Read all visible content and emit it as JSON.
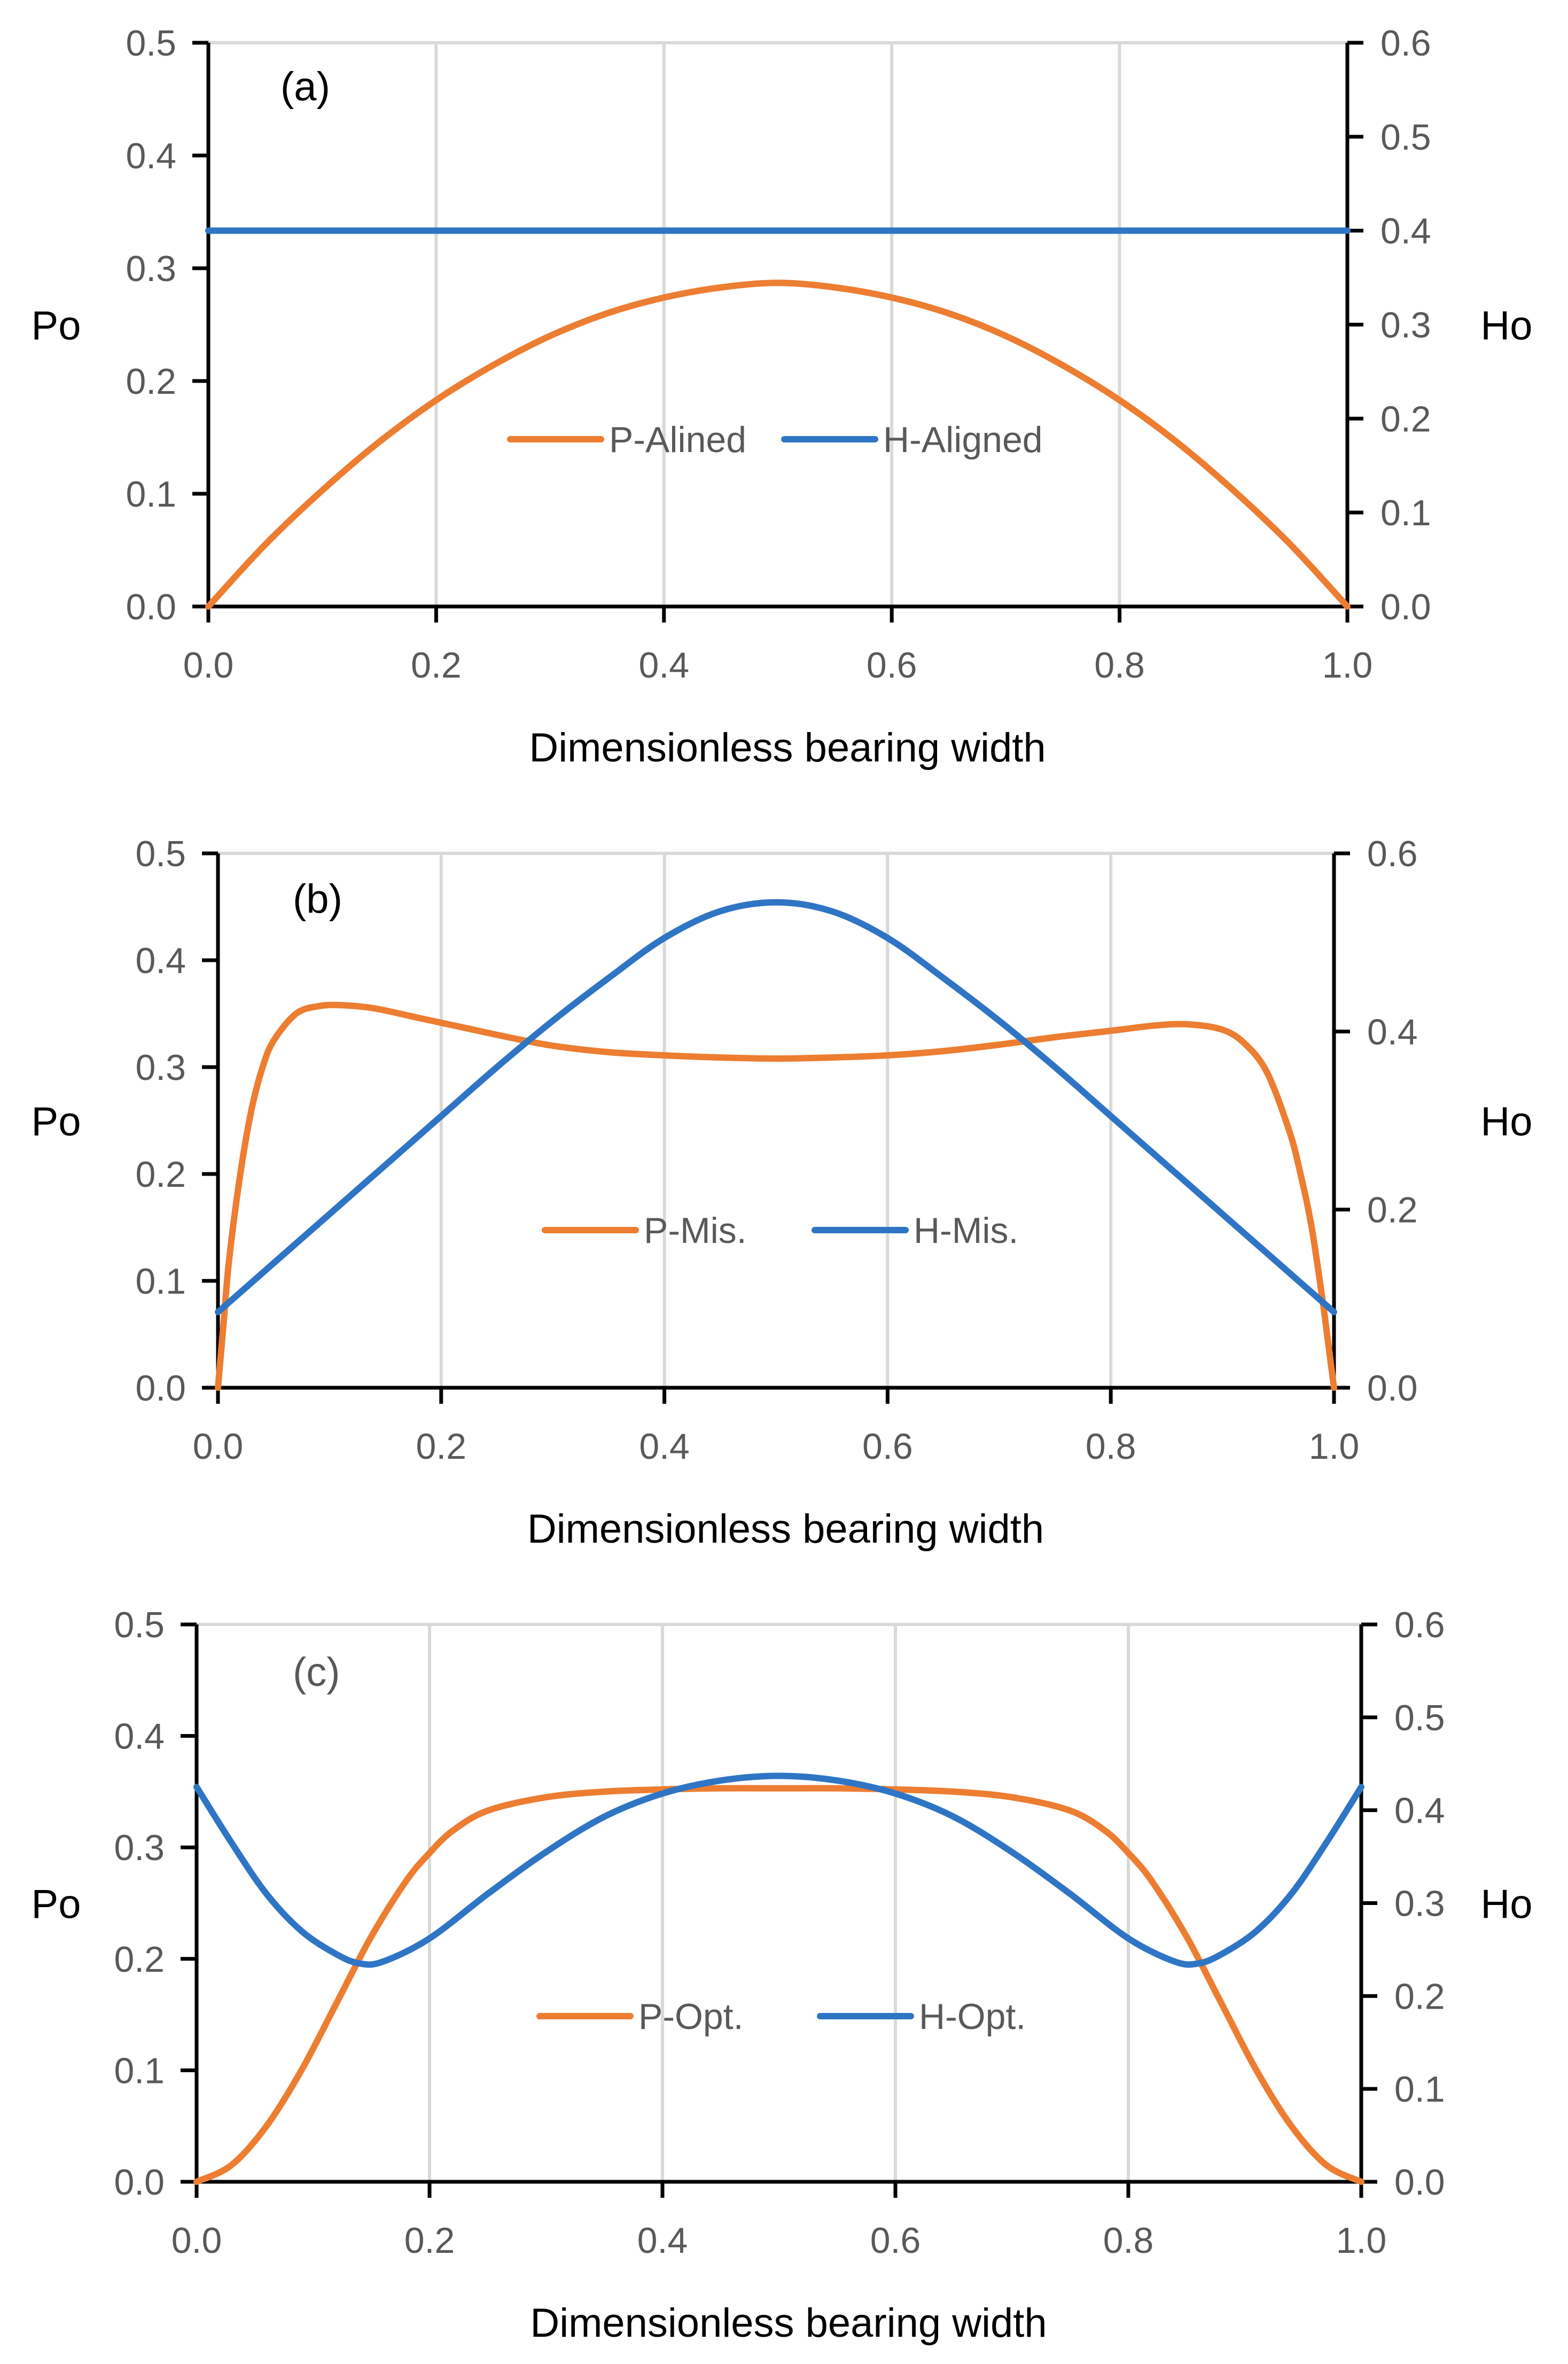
{
  "chart_data": [
    {
      "type": "line",
      "panel_label": "(a)",
      "xlabel": "Dimensionless bearing width",
      "ylabel_left": "Po",
      "ylabel_right": "Ho",
      "xlim": [
        0,
        1
      ],
      "ylim_left": [
        0,
        0.5
      ],
      "ylim_right": [
        0,
        0.6
      ],
      "x_ticks": [
        "0.0",
        "0.2",
        "0.4",
        "0.6",
        "0.8",
        "1.0"
      ],
      "y_left_ticks": [
        "0.0",
        "0.1",
        "0.2",
        "0.3",
        "0.4",
        "0.5"
      ],
      "y_right_ticks": [
        "0.0",
        "0.1",
        "0.2",
        "0.3",
        "0.4",
        "0.5",
        "0.6"
      ],
      "grid": "vertical",
      "legend_position": "center",
      "series": [
        {
          "name": "P-Alined",
          "axis": "left",
          "color": "#ed7d31",
          "x": [
            0,
            0.05,
            0.1,
            0.15,
            0.2,
            0.25,
            0.3,
            0.35,
            0.4,
            0.45,
            0.5,
            0.55,
            0.6,
            0.65,
            0.7,
            0.75,
            0.8,
            0.85,
            0.9,
            0.95,
            1.0
          ],
          "values": [
            0,
            0.055,
            0.103,
            0.146,
            0.183,
            0.214,
            0.24,
            0.26,
            0.274,
            0.283,
            0.287,
            0.283,
            0.274,
            0.26,
            0.24,
            0.214,
            0.183,
            0.146,
            0.103,
            0.055,
            0
          ]
        },
        {
          "name": "H-Aligned",
          "axis": "right",
          "color": "#2f75c5",
          "x": [
            0,
            1.0
          ],
          "values": [
            0.4,
            0.4
          ]
        }
      ]
    },
    {
      "type": "line",
      "panel_label": "(b)",
      "xlabel": "Dimensionless bearing width",
      "ylabel_left": "Po",
      "ylabel_right": "Ho",
      "xlim": [
        0,
        1
      ],
      "ylim_left": [
        0,
        0.5
      ],
      "ylim_right": [
        0,
        0.6
      ],
      "x_ticks": [
        "0.0",
        "0.2",
        "0.4",
        "0.6",
        "0.8",
        "1.0"
      ],
      "y_left_ticks": [
        "0.0",
        "0.1",
        "0.2",
        "0.3",
        "0.4",
        "0.5"
      ],
      "y_right_ticks": [
        "0.0",
        "0.2",
        "0.4",
        "0.6"
      ],
      "grid": "vertical",
      "legend_position": "center",
      "series": [
        {
          "name": "P-Mis.",
          "axis": "left",
          "color": "#ed7d31",
          "x": [
            0,
            0.005,
            0.01,
            0.02,
            0.03,
            0.04,
            0.05,
            0.07,
            0.09,
            0.11,
            0.14,
            0.18,
            0.22,
            0.26,
            0.3,
            0.35,
            0.4,
            0.45,
            0.5,
            0.55,
            0.6,
            0.65,
            0.7,
            0.75,
            0.8,
            0.84,
            0.87,
            0.9,
            0.92,
            0.94,
            0.96,
            0.97,
            0.98,
            0.99,
            0.995,
            1.0
          ],
          "values": [
            0,
            0.06,
            0.12,
            0.2,
            0.26,
            0.3,
            0.325,
            0.35,
            0.357,
            0.358,
            0.355,
            0.346,
            0.337,
            0.328,
            0.32,
            0.314,
            0.311,
            0.309,
            0.308,
            0.309,
            0.311,
            0.315,
            0.321,
            0.328,
            0.334,
            0.339,
            0.34,
            0.335,
            0.322,
            0.295,
            0.24,
            0.2,
            0.15,
            0.08,
            0.04,
            0
          ]
        },
        {
          "name": "H-Mis.",
          "axis": "right",
          "color": "#2f75c5",
          "x": [
            0,
            0.05,
            0.1,
            0.15,
            0.2,
            0.25,
            0.3,
            0.35,
            0.4,
            0.45,
            0.5,
            0.55,
            0.6,
            0.65,
            0.7,
            0.75,
            0.8,
            0.85,
            0.9,
            0.95,
            1.0
          ],
          "values": [
            0.085,
            0.14,
            0.195,
            0.25,
            0.305,
            0.36,
            0.412,
            0.46,
            0.505,
            0.535,
            0.545,
            0.535,
            0.505,
            0.46,
            0.412,
            0.36,
            0.305,
            0.25,
            0.195,
            0.14,
            0.085
          ]
        }
      ]
    },
    {
      "type": "line",
      "panel_label": "(c)",
      "xlabel": "Dimensionless bearing width",
      "ylabel_left": "Po",
      "ylabel_right": "Ho",
      "xlim": [
        0,
        1
      ],
      "ylim_left": [
        0,
        0.5
      ],
      "ylim_right": [
        0,
        0.6
      ],
      "x_ticks": [
        "0.0",
        "0.2",
        "0.4",
        "0.6",
        "0.8",
        "1.0"
      ],
      "y_left_ticks": [
        "0.0",
        "0.1",
        "0.2",
        "0.3",
        "0.4",
        "0.5"
      ],
      "y_right_ticks": [
        "0.0",
        "0.1",
        "0.2",
        "0.3",
        "0.4",
        "0.5",
        "0.6"
      ],
      "grid": "vertical",
      "legend_position": "center",
      "series": [
        {
          "name": "P-Opt.",
          "axis": "left",
          "color": "#ed7d31",
          "x": [
            0,
            0.03,
            0.06,
            0.09,
            0.12,
            0.15,
            0.18,
            0.2,
            0.22,
            0.25,
            0.3,
            0.35,
            0.4,
            0.45,
            0.5,
            0.55,
            0.6,
            0.65,
            0.7,
            0.75,
            0.78,
            0.8,
            0.82,
            0.85,
            0.88,
            0.91,
            0.94,
            0.97,
            1.0
          ],
          "values": [
            0,
            0.015,
            0.05,
            0.1,
            0.16,
            0.22,
            0.27,
            0.295,
            0.315,
            0.333,
            0.345,
            0.35,
            0.352,
            0.353,
            0.353,
            0.353,
            0.352,
            0.35,
            0.345,
            0.333,
            0.315,
            0.295,
            0.27,
            0.22,
            0.16,
            0.1,
            0.05,
            0.015,
            0
          ]
        },
        {
          "name": "H-Opt.",
          "axis": "right",
          "color": "#2f75c5",
          "x": [
            0,
            0.03,
            0.06,
            0.09,
            0.12,
            0.14,
            0.16,
            0.2,
            0.25,
            0.3,
            0.35,
            0.4,
            0.45,
            0.5,
            0.55,
            0.6,
            0.65,
            0.7,
            0.75,
            0.8,
            0.84,
            0.86,
            0.88,
            0.91,
            0.94,
            0.97,
            1.0
          ],
          "values": [
            0.425,
            0.365,
            0.31,
            0.27,
            0.245,
            0.235,
            0.237,
            0.262,
            0.31,
            0.355,
            0.393,
            0.418,
            0.432,
            0.437,
            0.432,
            0.418,
            0.393,
            0.355,
            0.31,
            0.262,
            0.237,
            0.235,
            0.245,
            0.27,
            0.31,
            0.365,
            0.425
          ]
        }
      ]
    }
  ]
}
